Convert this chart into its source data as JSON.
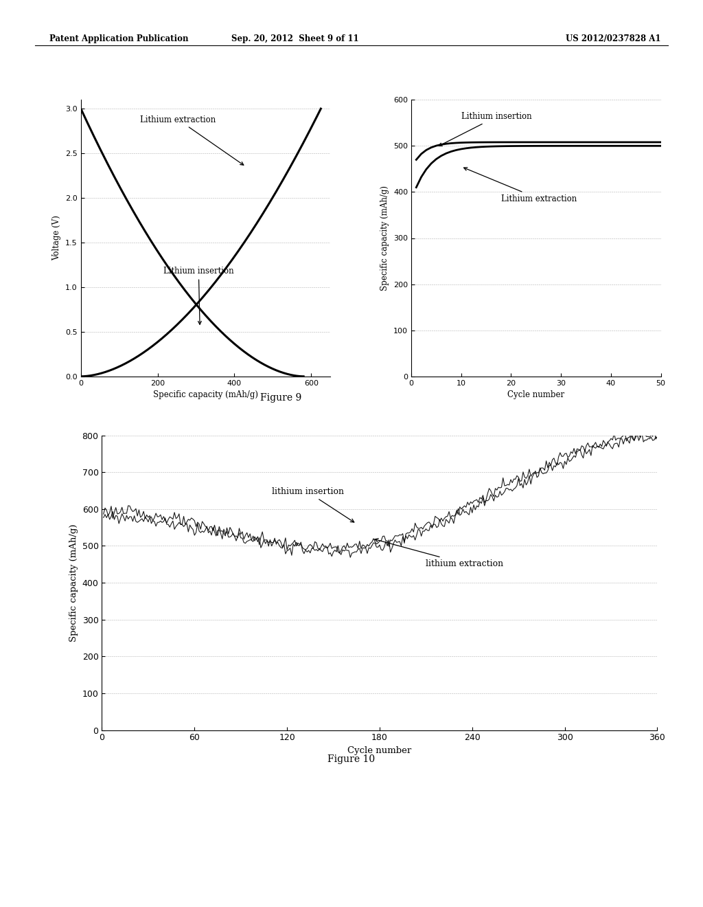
{
  "header_left": "Patent Application Publication",
  "header_center": "Sep. 20, 2012  Sheet 9 of 11",
  "header_right": "US 2012/0237828 A1",
  "fig9_caption": "Figure 9",
  "fig10_caption": "Figure 10",
  "fig9_left": {
    "xlabel": "Specific capacity (mAh/g)",
    "ylabel": "Voltage (V)",
    "xlim": [
      0,
      650
    ],
    "ylim": [
      0,
      3.1
    ],
    "xticks": [
      0,
      200,
      400,
      600
    ],
    "yticks": [
      0,
      0.5,
      1,
      1.5,
      2,
      2.5,
      3
    ],
    "label_extraction": "Lithium extraction",
    "label_insertion": "Lithium insertion"
  },
  "fig9_right": {
    "xlabel": "Cycle number",
    "ylabel": "Specific capacity (mAh/g)",
    "xlim": [
      0,
      50
    ],
    "ylim": [
      0,
      600
    ],
    "xticks": [
      0,
      10,
      20,
      30,
      40,
      50
    ],
    "yticks": [
      0,
      100,
      200,
      300,
      400,
      500,
      600
    ],
    "label_extraction": "Lithium extraction",
    "label_insertion": "Lithium insertion"
  },
  "fig10": {
    "xlabel": "Cycle number",
    "ylabel": "Specific capacity (mAh/g)",
    "xlim": [
      0,
      360
    ],
    "ylim": [
      0,
      800
    ],
    "xticks": [
      0,
      60,
      120,
      180,
      240,
      300,
      360
    ],
    "yticks": [
      0,
      100,
      200,
      300,
      400,
      500,
      600,
      700,
      800
    ],
    "label_extraction": "lithium extraction",
    "label_insertion": "lithium insertion"
  }
}
